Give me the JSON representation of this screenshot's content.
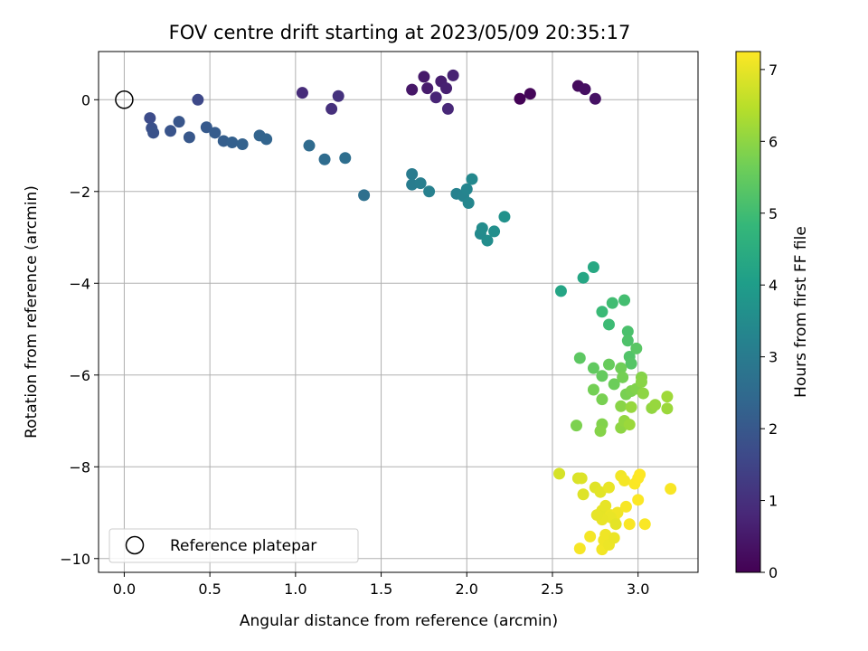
{
  "chart_data": {
    "type": "scatter",
    "title": "FOV centre drift starting at 2023/05/09 20:35:17",
    "xlabel": "Angular distance from reference (arcmin)",
    "ylabel": "Rotation from reference (arcmin)",
    "xlim": [
      -0.15,
      3.35
    ],
    "ylim": [
      -10.3,
      1.05
    ],
    "x_ticks": [
      0.0,
      0.5,
      1.0,
      1.5,
      2.0,
      2.5,
      3.0
    ],
    "x_tick_labels": [
      "0.0",
      "0.5",
      "1.0",
      "1.5",
      "2.0",
      "2.5",
      "3.0"
    ],
    "y_ticks": [
      0,
      -2,
      -4,
      -6,
      -8,
      -10
    ],
    "y_tick_labels": [
      "0",
      "−2",
      "−4",
      "−6",
      "−8",
      "−10"
    ],
    "grid": true,
    "colormap": "viridis",
    "colorbar": {
      "label": "Hours from first FF file",
      "min": 0,
      "max": 7.25,
      "ticks": [
        0,
        1,
        2,
        3,
        4,
        5,
        6,
        7
      ],
      "tick_labels": [
        "0",
        "1",
        "2",
        "3",
        "4",
        "5",
        "6",
        "7"
      ]
    },
    "legend": {
      "placement": "lower-left",
      "entries": [
        {
          "label": "Reference platepar",
          "marker": "open-circle"
        }
      ]
    },
    "reference_point": {
      "x": 0.0,
      "y": 0.0
    },
    "points": [
      [
        2.31,
        0.02,
        0.05
      ],
      [
        2.37,
        0.13,
        0.12
      ],
      [
        2.65,
        0.3,
        0.2
      ],
      [
        2.69,
        0.23,
        0.28
      ],
      [
        2.75,
        0.02,
        0.35
      ],
      [
        1.68,
        0.22,
        0.45
      ],
      [
        1.75,
        0.5,
        0.5
      ],
      [
        1.77,
        0.25,
        0.55
      ],
      [
        1.85,
        0.4,
        0.6
      ],
      [
        1.88,
        0.25,
        0.65
      ],
      [
        1.92,
        0.53,
        0.7
      ],
      [
        1.82,
        0.05,
        0.75
      ],
      [
        1.89,
        -0.2,
        0.8
      ],
      [
        1.04,
        0.15,
        0.9
      ],
      [
        1.21,
        -0.2,
        1.0
      ],
      [
        1.25,
        0.08,
        1.05
      ],
      [
        0.43,
        0.0,
        1.6
      ],
      [
        0.15,
        -0.4,
        1.7
      ],
      [
        0.16,
        -0.62,
        1.8
      ],
      [
        0.17,
        -0.72,
        1.85
      ],
      [
        0.27,
        -0.68,
        1.9
      ],
      [
        0.32,
        -0.48,
        1.95
      ],
      [
        0.38,
        -0.82,
        2.0
      ],
      [
        0.48,
        -0.6,
        2.05
      ],
      [
        0.53,
        -0.72,
        2.1
      ],
      [
        0.58,
        -0.9,
        2.15
      ],
      [
        0.63,
        -0.93,
        2.2
      ],
      [
        0.69,
        -0.97,
        2.25
      ],
      [
        0.79,
        -0.78,
        2.3
      ],
      [
        0.83,
        -0.86,
        2.35
      ],
      [
        1.08,
        -1.0,
        2.5
      ],
      [
        1.17,
        -1.3,
        2.55
      ],
      [
        1.29,
        -1.27,
        2.6
      ],
      [
        1.4,
        -2.08,
        2.65
      ],
      [
        1.68,
        -1.62,
        3.0
      ],
      [
        1.68,
        -1.85,
        3.05
      ],
      [
        1.73,
        -1.82,
        3.1
      ],
      [
        1.78,
        -2.0,
        3.15
      ],
      [
        1.94,
        -2.05,
        3.2
      ],
      [
        1.98,
        -2.1,
        3.25
      ],
      [
        2.0,
        -1.95,
        3.3
      ],
      [
        2.01,
        -2.25,
        3.35
      ],
      [
        2.03,
        -1.73,
        3.4
      ],
      [
        2.08,
        -2.92,
        3.45
      ],
      [
        2.09,
        -2.8,
        3.5
      ],
      [
        2.12,
        -3.07,
        3.55
      ],
      [
        2.16,
        -2.87,
        3.6
      ],
      [
        2.22,
        -2.55,
        3.65
      ],
      [
        2.55,
        -4.17,
        4.25
      ],
      [
        2.68,
        -3.88,
        4.3
      ],
      [
        2.74,
        -3.65,
        4.35
      ],
      [
        2.79,
        -4.62,
        4.9
      ],
      [
        2.83,
        -4.9,
        4.95
      ],
      [
        2.85,
        -4.43,
        5.0
      ],
      [
        2.92,
        -4.37,
        5.05
      ],
      [
        2.94,
        -5.05,
        5.15
      ],
      [
        2.94,
        -5.25,
        5.2
      ],
      [
        2.95,
        -5.6,
        5.25
      ],
      [
        2.96,
        -5.75,
        5.3
      ],
      [
        2.99,
        -5.42,
        5.35
      ],
      [
        2.66,
        -5.63,
        5.4
      ],
      [
        2.74,
        -5.85,
        5.45
      ],
      [
        2.79,
        -6.02,
        5.5
      ],
      [
        2.83,
        -5.77,
        5.55
      ],
      [
        2.86,
        -6.2,
        5.6
      ],
      [
        2.9,
        -5.85,
        5.65
      ],
      [
        2.91,
        -6.05,
        5.7
      ],
      [
        2.93,
        -6.42,
        5.75
      ],
      [
        2.96,
        -6.35,
        5.8
      ],
      [
        2.99,
        -6.3,
        5.85
      ],
      [
        3.02,
        -6.05,
        5.9
      ],
      [
        3.02,
        -6.15,
        5.95
      ],
      [
        3.03,
        -6.4,
        6.0
      ],
      [
        3.08,
        -6.72,
        6.05
      ],
      [
        3.1,
        -6.65,
        6.1
      ],
      [
        3.17,
        -6.73,
        6.15
      ],
      [
        3.17,
        -6.47,
        6.2
      ],
      [
        2.74,
        -6.32,
        5.7
      ],
      [
        2.79,
        -6.53,
        5.75
      ],
      [
        2.64,
        -7.1,
        5.8
      ],
      [
        2.79,
        -7.07,
        5.85
      ],
      [
        2.78,
        -7.22,
        5.9
      ],
      [
        2.9,
        -6.68,
        5.95
      ],
      [
        2.9,
        -7.15,
        6.0
      ],
      [
        2.92,
        -7.0,
        6.05
      ],
      [
        2.96,
        -6.7,
        6.1
      ],
      [
        2.95,
        -7.08,
        6.15
      ],
      [
        2.54,
        -8.15,
        6.8
      ],
      [
        2.65,
        -8.25,
        6.85
      ],
      [
        2.67,
        -8.25,
        6.88
      ],
      [
        2.68,
        -8.6,
        6.9
      ],
      [
        2.75,
        -8.45,
        6.93
      ],
      [
        2.78,
        -8.55,
        6.95
      ],
      [
        2.79,
        -8.95,
        6.98
      ],
      [
        2.81,
        -8.85,
        7.0
      ],
      [
        2.83,
        -8.45,
        7.03
      ],
      [
        2.84,
        -9.05,
        7.05
      ],
      [
        2.86,
        -9.15,
        7.08
      ],
      [
        2.88,
        -9.0,
        7.1
      ],
      [
        2.9,
        -8.2,
        7.12
      ],
      [
        2.92,
        -8.3,
        7.15
      ],
      [
        2.93,
        -8.87,
        7.18
      ],
      [
        2.95,
        -9.25,
        7.2
      ],
      [
        2.98,
        -8.37,
        7.22
      ],
      [
        3.0,
        -8.25,
        7.24
      ],
      [
        3.01,
        -8.17,
        7.25
      ],
      [
        3.0,
        -8.72,
        7.23
      ],
      [
        3.04,
        -9.25,
        7.21
      ],
      [
        3.19,
        -8.48,
        7.19
      ],
      [
        2.66,
        -9.78,
        7.17
      ],
      [
        2.72,
        -9.52,
        7.15
      ],
      [
        2.79,
        -9.8,
        7.13
      ],
      [
        2.8,
        -9.6,
        7.11
      ],
      [
        2.81,
        -9.48,
        7.09
      ],
      [
        2.83,
        -9.7,
        7.07
      ],
      [
        2.86,
        -9.55,
        7.05
      ],
      [
        2.84,
        -9.1,
        7.03
      ],
      [
        2.79,
        -9.15,
        7.01
      ],
      [
        2.76,
        -9.05,
        6.99
      ],
      [
        2.87,
        -9.25,
        6.97
      ]
    ]
  }
}
